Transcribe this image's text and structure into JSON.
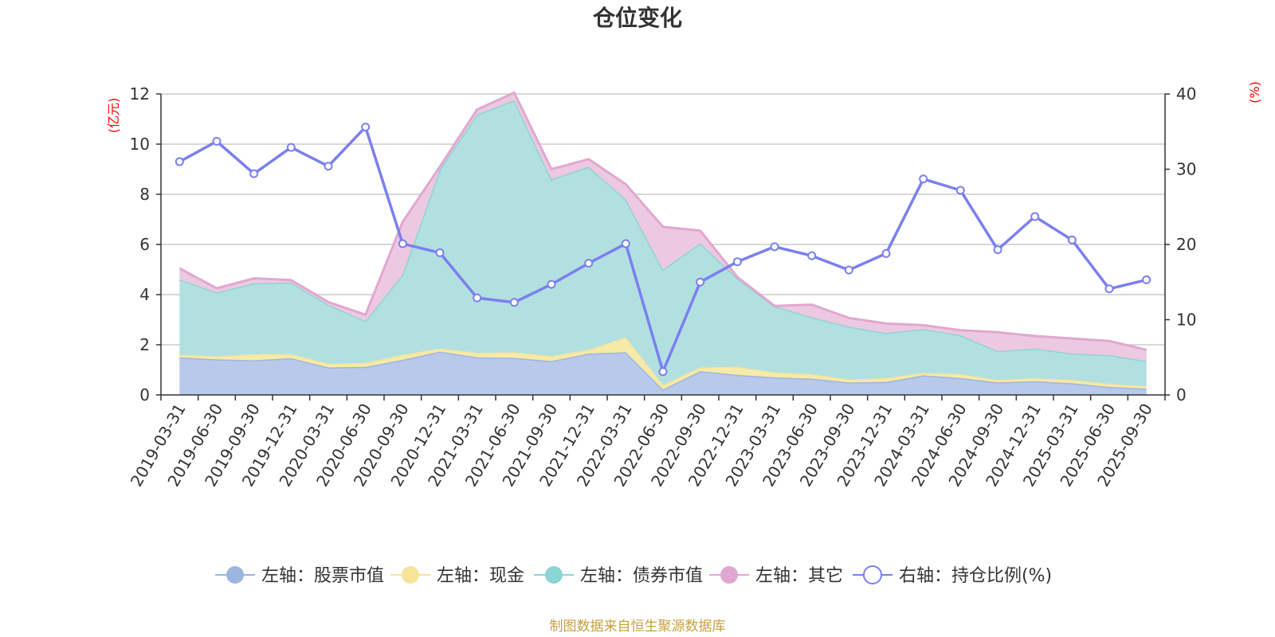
{
  "chart_data": {
    "type": "area",
    "title": "仓位变化",
    "left_unit": "(亿元)",
    "right_unit": "(%)",
    "ylim_left": [
      0,
      12
    ],
    "yticks_left": [
      0,
      2,
      4,
      6,
      8,
      10,
      12
    ],
    "ylim_right": [
      0,
      40
    ],
    "yticks_right": [
      0,
      10,
      20,
      30,
      40
    ],
    "categories": [
      "2019-03-31",
      "2019-06-30",
      "2019-09-30",
      "2019-12-31",
      "2020-03-31",
      "2020-06-30",
      "2020-09-30",
      "2020-12-31",
      "2021-03-31",
      "2021-06-30",
      "2021-09-30",
      "2021-12-31",
      "2022-03-31",
      "2022-06-30",
      "2022-09-30",
      "2022-12-31",
      "2023-03-31",
      "2023-06-30",
      "2023-09-30",
      "2023-12-31",
      "2024-03-31",
      "2024-06-30",
      "2024-09-30",
      "2024-12-31",
      "2025-03-31",
      "2025-06-30",
      "2025-09-30"
    ],
    "stacked_series": [
      {
        "name": "左轴：股票市值",
        "color": "#9db6e0",
        "fill": "#b8c9ea",
        "values": [
          1.5,
          1.42,
          1.38,
          1.47,
          1.1,
          1.12,
          1.4,
          1.73,
          1.5,
          1.48,
          1.35,
          1.65,
          1.7,
          0.22,
          0.95,
          0.8,
          0.7,
          0.65,
          0.5,
          0.52,
          0.78,
          0.68,
          0.5,
          0.55,
          0.47,
          0.32,
          0.25
        ]
      },
      {
        "name": "左轴：现金",
        "color": "#f5e49a",
        "fill": "#f7eaa8",
        "values": [
          0.1,
          0.12,
          0.25,
          0.16,
          0.14,
          0.16,
          0.2,
          0.12,
          0.18,
          0.22,
          0.2,
          0.15,
          0.6,
          0.18,
          0.15,
          0.32,
          0.2,
          0.18,
          0.12,
          0.15,
          0.1,
          0.15,
          0.1,
          0.12,
          0.13,
          0.12,
          0.1
        ]
      },
      {
        "name": "左轴：债券市值",
        "color": "#8dd4d4",
        "fill": "#b2e0e0",
        "values": [
          3.0,
          2.55,
          2.82,
          2.85,
          2.36,
          1.67,
          3.2,
          7.15,
          9.5,
          10.05,
          7.05,
          7.3,
          5.5,
          4.6,
          4.95,
          3.53,
          2.64,
          2.27,
          2.1,
          1.8,
          1.75,
          1.55,
          1.15,
          1.18,
          1.05,
          1.15,
          1.0
        ]
      },
      {
        "name": "左轴：其它",
        "color": "#e0a8d0",
        "fill": "#ecc9e0",
        "values": [
          0.45,
          0.16,
          0.2,
          0.1,
          0.1,
          0.25,
          2.1,
          0.1,
          0.2,
          0.3,
          0.4,
          0.3,
          0.6,
          1.7,
          0.5,
          0.05,
          0.01,
          0.5,
          0.35,
          0.38,
          0.15,
          0.2,
          0.75,
          0.5,
          0.6,
          0.56,
          0.45
        ]
      }
    ],
    "line_series": {
      "name": "右轴：持仓比例(%)",
      "color": "#7b7ff0",
      "values": [
        31.0,
        33.7,
        29.4,
        32.9,
        30.4,
        35.6,
        20.1,
        18.9,
        12.9,
        12.3,
        14.7,
        17.5,
        20.1,
        3.1,
        15.0,
        17.7,
        19.7,
        18.5,
        16.6,
        18.8,
        28.7,
        27.2,
        19.3,
        23.7,
        20.6,
        14.1,
        15.3
      ]
    },
    "legend_position": "bottom-center",
    "grid": true
  },
  "source_text": "制图数据来自恒生聚源数据库"
}
